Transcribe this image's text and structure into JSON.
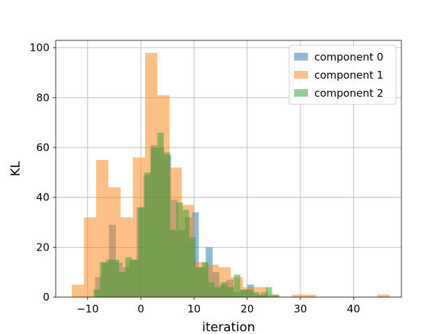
{
  "chart_data": {
    "type": "bar",
    "subtype": "overlapping-histogram",
    "xlabel": "iteration",
    "ylabel": "KL",
    "xlim": [
      -16,
      49
    ],
    "ylim": [
      0,
      103
    ],
    "xticks": [
      -10,
      0,
      10,
      20,
      30,
      40
    ],
    "yticks": [
      0,
      20,
      40,
      60,
      80,
      100
    ],
    "grid": true,
    "legend_position": "top-right",
    "series": [
      {
        "name": "component 0",
        "color": "#1f77b4",
        "opacity": 0.5,
        "bins": [
          {
            "x0": -8.6,
            "x1": -7.3,
            "y": 8
          },
          {
            "x0": -7.3,
            "x1": -6.0,
            "y": 14
          },
          {
            "x0": -6.0,
            "x1": -4.7,
            "y": 29
          },
          {
            "x0": -4.7,
            "x1": -3.4,
            "y": 14
          },
          {
            "x0": -3.4,
            "x1": -2.1,
            "y": 12
          },
          {
            "x0": -2.1,
            "x1": -0.8,
            "y": 15
          },
          {
            "x0": -0.8,
            "x1": 0.5,
            "y": 36
          },
          {
            "x0": 0.5,
            "x1": 1.8,
            "y": 49
          },
          {
            "x0": 1.8,
            "x1": 3.1,
            "y": 61
          },
          {
            "x0": 3.1,
            "x1": 4.4,
            "y": 60
          },
          {
            "x0": 4.4,
            "x1": 5.7,
            "y": 57
          },
          {
            "x0": 5.7,
            "x1": 7.0,
            "y": 39
          },
          {
            "x0": 7.0,
            "x1": 8.3,
            "y": 27
          },
          {
            "x0": 8.3,
            "x1": 9.6,
            "y": 32
          },
          {
            "x0": 9.6,
            "x1": 10.9,
            "y": 34
          },
          {
            "x0": 10.9,
            "x1": 12.2,
            "y": 12
          },
          {
            "x0": 12.2,
            "x1": 13.5,
            "y": 20
          },
          {
            "x0": 13.5,
            "x1": 14.8,
            "y": 10
          },
          {
            "x0": 14.8,
            "x1": 16.1,
            "y": 5
          },
          {
            "x0": 16.1,
            "x1": 17.4,
            "y": 7
          },
          {
            "x0": 17.4,
            "x1": 18.7,
            "y": 2
          },
          {
            "x0": 18.7,
            "x1": 20.0,
            "y": 3
          },
          {
            "x0": 20.0,
            "x1": 21.3,
            "y": 5
          },
          {
            "x0": 21.3,
            "x1": 22.6,
            "y": 1
          },
          {
            "x0": 22.6,
            "x1": 23.9,
            "y": 2
          }
        ]
      },
      {
        "name": "component 1",
        "color": "#ff7f0e",
        "opacity": 0.5,
        "bins": [
          {
            "x0": -13.0,
            "x1": -10.7,
            "y": 5
          },
          {
            "x0": -10.7,
            "x1": -8.4,
            "y": 32
          },
          {
            "x0": -8.4,
            "x1": -6.1,
            "y": 55
          },
          {
            "x0": -6.1,
            "x1": -3.8,
            "y": 44
          },
          {
            "x0": -3.8,
            "x1": -1.5,
            "y": 32
          },
          {
            "x0": -1.5,
            "x1": 0.8,
            "y": 56
          },
          {
            "x0": 0.8,
            "x1": 3.1,
            "y": 98
          },
          {
            "x0": 3.1,
            "x1": 5.4,
            "y": 81
          },
          {
            "x0": 5.4,
            "x1": 7.7,
            "y": 52
          },
          {
            "x0": 7.7,
            "x1": 10.0,
            "y": 37
          },
          {
            "x0": 10.0,
            "x1": 12.3,
            "y": 14
          },
          {
            "x0": 12.3,
            "x1": 14.6,
            "y": 13
          },
          {
            "x0": 14.6,
            "x1": 16.9,
            "y": 12
          },
          {
            "x0": 16.9,
            "x1": 19.2,
            "y": 8
          },
          {
            "x0": 19.2,
            "x1": 21.5,
            "y": 4
          },
          {
            "x0": 21.5,
            "x1": 23.8,
            "y": 4
          },
          {
            "x0": 23.8,
            "x1": 26.1,
            "y": 1
          },
          {
            "x0": 26.1,
            "x1": 28.4,
            "y": 0
          },
          {
            "x0": 28.4,
            "x1": 30.7,
            "y": 1
          },
          {
            "x0": 30.7,
            "x1": 33.0,
            "y": 1
          },
          {
            "x0": 33.0,
            "x1": 35.3,
            "y": 0
          },
          {
            "x0": 35.3,
            "x1": 37.6,
            "y": 0
          },
          {
            "x0": 37.6,
            "x1": 39.9,
            "y": 0
          },
          {
            "x0": 39.9,
            "x1": 42.2,
            "y": 0
          },
          {
            "x0": 42.2,
            "x1": 44.5,
            "y": 0
          },
          {
            "x0": 44.5,
            "x1": 46.8,
            "y": 1
          }
        ]
      },
      {
        "name": "component 2",
        "color": "#2ca02c",
        "opacity": 0.5,
        "bins": [
          {
            "x0": -8.9,
            "x1": -7.7,
            "y": 3
          },
          {
            "x0": -7.7,
            "x1": -6.5,
            "y": 14
          },
          {
            "x0": -6.5,
            "x1": -5.3,
            "y": 15
          },
          {
            "x0": -5.3,
            "x1": -4.1,
            "y": 15
          },
          {
            "x0": -4.1,
            "x1": -2.9,
            "y": 10
          },
          {
            "x0": -2.9,
            "x1": -1.7,
            "y": 16
          },
          {
            "x0": -1.7,
            "x1": -0.5,
            "y": 15
          },
          {
            "x0": -0.5,
            "x1": 0.7,
            "y": 36
          },
          {
            "x0": 0.7,
            "x1": 1.9,
            "y": 50
          },
          {
            "x0": 1.9,
            "x1": 3.1,
            "y": 60
          },
          {
            "x0": 3.1,
            "x1": 4.3,
            "y": 66
          },
          {
            "x0": 4.3,
            "x1": 5.5,
            "y": 58
          },
          {
            "x0": 5.5,
            "x1": 6.7,
            "y": 27
          },
          {
            "x0": 6.7,
            "x1": 7.9,
            "y": 38
          },
          {
            "x0": 7.9,
            "x1": 9.1,
            "y": 35
          },
          {
            "x0": 9.1,
            "x1": 10.3,
            "y": 24
          },
          {
            "x0": 10.3,
            "x1": 11.5,
            "y": 12
          },
          {
            "x0": 11.5,
            "x1": 12.7,
            "y": 14
          },
          {
            "x0": 12.7,
            "x1": 13.9,
            "y": 6
          },
          {
            "x0": 13.9,
            "x1": 15.1,
            "y": 4
          },
          {
            "x0": 15.1,
            "x1": 16.3,
            "y": 6
          },
          {
            "x0": 16.3,
            "x1": 17.5,
            "y": 4
          },
          {
            "x0": 17.5,
            "x1": 18.7,
            "y": 9
          },
          {
            "x0": 18.7,
            "x1": 19.9,
            "y": 3
          },
          {
            "x0": 19.9,
            "x1": 21.1,
            "y": 3
          },
          {
            "x0": 21.1,
            "x1": 22.3,
            "y": 2
          },
          {
            "x0": 22.3,
            "x1": 23.5,
            "y": 1
          },
          {
            "x0": 23.5,
            "x1": 24.7,
            "y": 4
          },
          {
            "x0": 24.7,
            "x1": 25.9,
            "y": 1
          }
        ]
      }
    ]
  }
}
